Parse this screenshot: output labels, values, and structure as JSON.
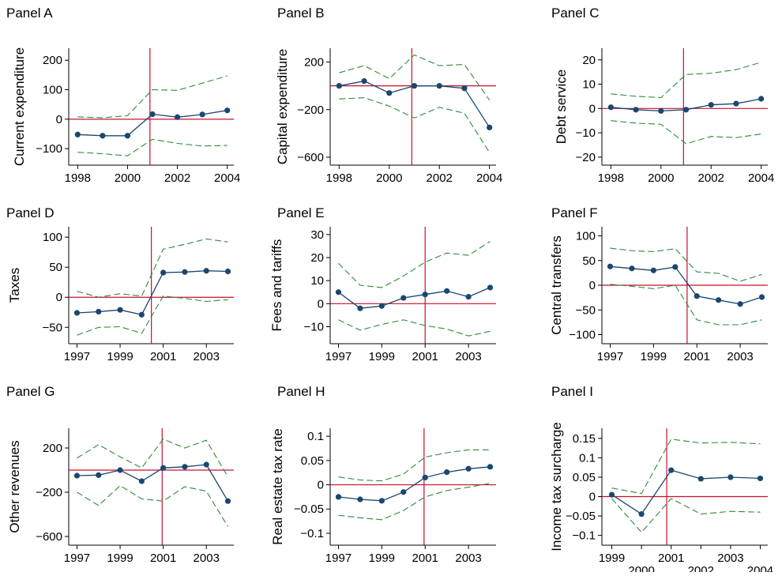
{
  "colors": {
    "ref_line": "#c8102e",
    "estimate": "#1a476f",
    "ci": "#2e8b3a",
    "axis": "#000000"
  },
  "chart_data": [
    {
      "type": "line",
      "panel_title": "Panel A",
      "ylabel": "Current expenditure",
      "x": [
        1998,
        1999,
        2000,
        2001,
        2002,
        2003,
        2004
      ],
      "series": [
        {
          "role": "estimate",
          "values": [
            -52,
            -56,
            -56,
            17,
            7,
            16,
            30
          ]
        },
        {
          "role": "ci-upper",
          "values": [
            8,
            5,
            12,
            100,
            98,
            122,
            147
          ]
        },
        {
          "role": "ci-lower",
          "values": [
            -112,
            -117,
            -124,
            -68,
            -82,
            -91,
            -89
          ]
        }
      ],
      "xlim": [
        1997.8,
        2004.2
      ],
      "ylim": [
        -145,
        230
      ],
      "xticks": [
        1998,
        2000,
        2002,
        2004
      ],
      "xtick_labels": [
        "1998",
        "2000",
        "2002",
        "2004"
      ],
      "yticks": [
        -100,
        0,
        100,
        200
      ],
      "ytick_labels": [
        "−100",
        "0",
        "100",
        "200"
      ],
      "hline": 0,
      "vline": 2000.9
    },
    {
      "type": "line",
      "panel_title": "Panel B",
      "ylabel": "Capital expenditure",
      "x": [
        1998,
        1999,
        2000,
        2001,
        2002,
        2003,
        2004
      ],
      "series": [
        {
          "role": "estimate",
          "values": [
            0,
            40,
            -60,
            0,
            0,
            -20,
            -350
          ]
        },
        {
          "role": "ci-upper",
          "values": [
            110,
            170,
            60,
            260,
            170,
            180,
            -120
          ]
        },
        {
          "role": "ci-lower",
          "values": [
            -110,
            -100,
            -170,
            -270,
            -180,
            -230,
            -560
          ]
        }
      ],
      "xlim": [
        1997.8,
        2004.2
      ],
      "ylim": [
        -640,
        290
      ],
      "xticks": [
        1998,
        2000,
        2002,
        2004
      ],
      "xtick_labels": [
        "1998",
        "2000",
        "2002",
        "2004"
      ],
      "yticks": [
        -600,
        -200,
        200
      ],
      "ytick_labels": [
        "−600",
        "−200",
        "200"
      ],
      "hline": 0,
      "vline": 2000.9
    },
    {
      "type": "line",
      "panel_title": "Panel C",
      "ylabel": "Debt service",
      "x": [
        1998,
        1999,
        2000,
        2001,
        2002,
        2003,
        2004
      ],
      "series": [
        {
          "role": "estimate",
          "values": [
            0.5,
            -0.5,
            -1,
            -0.5,
            1.5,
            2,
            4
          ]
        },
        {
          "role": "ci-upper",
          "values": [
            6,
            5,
            4.5,
            14,
            14.5,
            16,
            19
          ]
        },
        {
          "role": "ci-lower",
          "values": [
            -5,
            -6,
            -6.5,
            -14.5,
            -11.5,
            -12,
            -10.5
          ]
        }
      ],
      "xlim": [
        1997.8,
        2004.2
      ],
      "ylim": [
        -22,
        23.5
      ],
      "xticks": [
        1998,
        2000,
        2002,
        2004
      ],
      "xtick_labels": [
        "1998",
        "2000",
        "2002",
        "2004"
      ],
      "yticks": [
        -20,
        -10,
        0,
        10,
        20
      ],
      "ytick_labels": [
        "−20",
        "−10",
        "0",
        "10",
        "20"
      ],
      "hline": 0,
      "vline": 2000.9
    },
    {
      "type": "line",
      "panel_title": "Panel D",
      "ylabel": "Taxes",
      "x": [
        1997,
        1998,
        1999,
        2000,
        2001,
        2002,
        2003,
        2004
      ],
      "series": [
        {
          "role": "estimate",
          "values": [
            -26,
            -24,
            -21,
            -29,
            41,
            42,
            44,
            43
          ]
        },
        {
          "role": "ci-upper",
          "values": [
            10,
            0,
            6,
            2,
            80,
            88,
            97,
            92
          ]
        },
        {
          "role": "ci-lower",
          "values": [
            -63,
            -50,
            -49,
            -60,
            2,
            -2,
            -7,
            -4
          ]
        }
      ],
      "xlim": [
        1996.8,
        2004.2
      ],
      "ylim": [
        -72,
        112
      ],
      "xticks": [
        1997,
        1999,
        2001,
        2003
      ],
      "xtick_labels": [
        "1997",
        "1999",
        "2001",
        "2003"
      ],
      "yticks": [
        -50,
        0,
        50,
        100
      ],
      "ytick_labels": [
        "−50",
        "0",
        "50",
        "100"
      ],
      "hline": 0,
      "vline": 2000.45
    },
    {
      "type": "line",
      "panel_title": "Panel E",
      "ylabel": "Fees and tariffs",
      "x": [
        1997,
        1998,
        1999,
        2000,
        2001,
        2002,
        2003,
        2004
      ],
      "series": [
        {
          "role": "estimate",
          "values": [
            5,
            -2,
            -1,
            2.5,
            4,
            5.5,
            3,
            7
          ]
        },
        {
          "role": "ci-upper",
          "values": [
            17.5,
            8,
            7,
            12,
            18,
            22,
            21,
            27
          ]
        },
        {
          "role": "ci-lower",
          "values": [
            -7,
            -11.5,
            -9,
            -7,
            -9.5,
            -11,
            -14,
            -12
          ]
        }
      ],
      "xlim": [
        1996.8,
        2004.2
      ],
      "ylim": [
        -16,
        32
      ],
      "xticks": [
        1997,
        1999,
        2001,
        2003
      ],
      "xtick_labels": [
        "1997",
        "1999",
        "2001",
        "2003"
      ],
      "yticks": [
        -10,
        0,
        10,
        20,
        30
      ],
      "ytick_labels": [
        "−10",
        "0",
        "10",
        "20",
        "30"
      ],
      "hline": 0,
      "vline": 2001
    },
    {
      "type": "line",
      "panel_title": "Panel F",
      "ylabel": "Central transfers",
      "x": [
        1997,
        1998,
        1999,
        2000,
        2001,
        2002,
        2003,
        2004
      ],
      "series": [
        {
          "role": "estimate",
          "values": [
            38,
            34,
            30,
            37,
            -22,
            -30,
            -38,
            -24
          ]
        },
        {
          "role": "ci-upper",
          "values": [
            75,
            70,
            68,
            74,
            27,
            24,
            8,
            22
          ]
        },
        {
          "role": "ci-lower",
          "values": [
            2,
            -2,
            -7,
            0,
            -70,
            -80,
            -80,
            -70
          ]
        }
      ],
      "xlim": [
        1996.8,
        2004.2
      ],
      "ylim": [
        -112,
        112
      ],
      "xticks": [
        1997,
        1999,
        2001,
        2003
      ],
      "xtick_labels": [
        "1997",
        "1999",
        "2001",
        "2003"
      ],
      "yticks": [
        -100,
        -50,
        0,
        50,
        100
      ],
      "ytick_labels": [
        "−100",
        "−50",
        "0",
        "50",
        "100"
      ],
      "hline": 0,
      "vline": 2000.55
    },
    {
      "type": "line",
      "panel_title": "Panel G",
      "ylabel": "Other revenues",
      "x": [
        1997,
        1998,
        1999,
        2000,
        2001,
        2002,
        2003,
        2004
      ],
      "series": [
        {
          "role": "estimate",
          "values": [
            -50,
            -45,
            0,
            -100,
            20,
            30,
            50,
            -280
          ]
        },
        {
          "role": "ci-upper",
          "values": [
            110,
            230,
            120,
            20,
            280,
            200,
            270,
            -60
          ]
        },
        {
          "role": "ci-lower",
          "values": [
            -200,
            -320,
            -140,
            -260,
            -280,
            -150,
            -190,
            -510
          ]
        }
      ],
      "xlim": [
        1996.8,
        2004.2
      ],
      "ylim": [
        -650,
        350
      ],
      "xticks": [
        1997,
        1999,
        2001,
        2003
      ],
      "xtick_labels": [
        "1997",
        "1999",
        "2001",
        "2003"
      ],
      "yticks": [
        -600,
        -200,
        200
      ],
      "ytick_labels": [
        "−600",
        "−200",
        "200"
      ],
      "hline": 0,
      "vline": 2000.95
    },
    {
      "type": "line",
      "panel_title": "Panel H",
      "ylabel": "Real estate tax rate",
      "x": [
        1997,
        1998,
        1999,
        2000,
        2001,
        2002,
        2003,
        2004
      ],
      "series": [
        {
          "role": "estimate",
          "values": [
            -0.025,
            -0.03,
            -0.033,
            -0.015,
            0.015,
            0.026,
            0.033,
            0.037
          ]
        },
        {
          "role": "ci-upper",
          "values": [
            0.016,
            0.01,
            0.008,
            0.022,
            0.057,
            0.066,
            0.072,
            0.072
          ]
        },
        {
          "role": "ci-lower",
          "values": [
            -0.063,
            -0.068,
            -0.072,
            -0.053,
            -0.025,
            -0.012,
            -0.005,
            0.003
          ]
        }
      ],
      "xlim": [
        1996.8,
        2004.2
      ],
      "ylim": [
        -0.118,
        0.11
      ],
      "xticks": [
        1997,
        1999,
        2001,
        2003
      ],
      "xtick_labels": [
        "1997",
        "1999",
        "2001",
        "2003"
      ],
      "yticks": [
        -0.1,
        -0.05,
        0,
        0.05,
        0.1
      ],
      "ytick_labels": [
        "−0.1",
        "−0.05",
        "0",
        "0.05",
        "0.1"
      ],
      "hline": 0,
      "vline": 2000.95
    },
    {
      "type": "line",
      "panel_title": "Panel I",
      "ylabel": "Income tax surcharge",
      "x": [
        1999,
        2000,
        2001,
        2002,
        2003,
        2004
      ],
      "series": [
        {
          "role": "estimate",
          "values": [
            0.005,
            -0.045,
            0.068,
            0.046,
            0.05,
            0.047
          ]
        },
        {
          "role": "ci-upper",
          "values": [
            0.022,
            0.008,
            0.148,
            0.138,
            0.14,
            0.136
          ]
        },
        {
          "role": "ci-lower",
          "values": [
            -0.005,
            -0.092,
            -0.005,
            -0.045,
            -0.038,
            -0.04
          ]
        }
      ],
      "xlim": [
        1998.8,
        2004.2
      ],
      "ylim": [
        -0.117,
        0.168
      ],
      "xticks": [
        1999,
        2000,
        2001,
        2002,
        2003,
        2004
      ],
      "xtick_labels": [
        "1999",
        "2000",
        "2001",
        "2002",
        "2003",
        "2004"
      ],
      "yticks": [
        -0.1,
        -0.05,
        0,
        0.05,
        0.1,
        0.15
      ],
      "ytick_labels": [
        "−0.1",
        "−0.05",
        "0",
        "0.05",
        "0.1",
        "0.15"
      ],
      "hline": 0,
      "vline": 2000.85
    }
  ]
}
